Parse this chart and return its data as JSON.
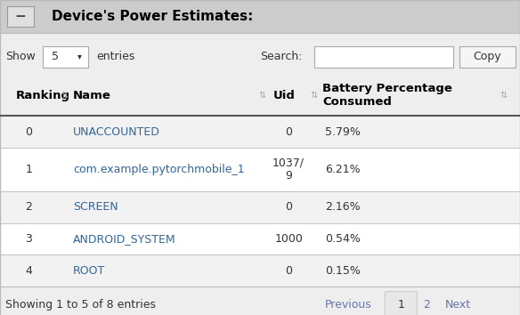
{
  "title": "Device's Power Estimates:",
  "rows": [
    [
      "0",
      "UNACCOUNTED",
      "0",
      "5.79%"
    ],
    [
      "1",
      "com.example.pytorchmobile_1",
      "1037/\n9",
      "6.21%"
    ],
    [
      "2",
      "SCREEN",
      "0",
      "2.16%"
    ],
    [
      "3",
      "ANDROID_SYSTEM",
      "1000",
      "0.54%"
    ],
    [
      "4",
      "ROOT",
      "0",
      "0.15%"
    ]
  ],
  "show_label": "Show",
  "show_value": "5",
  "entries_label": "entries",
  "search_label": "Search:",
  "copy_label": "Copy",
  "footer": "Showing 1 to 5 of 8 entries",
  "pagination": [
    "Previous",
    "1",
    "2",
    "Next"
  ],
  "row_bg_odd": "#f2f2f2",
  "row_bg_even": "#ffffff",
  "name_color": "#336699",
  "text_color": "#333333",
  "header_text_color": "#000000",
  "title_bg": "#cccccc",
  "border_color": "#bbbbbb",
  "pagination_current_bg": "#e8e8e8",
  "pagination_color": "#6677aa",
  "fig_bg": "#eeeeee",
  "font_size": 9,
  "header_font_size": 9.5,
  "title_font_size": 11
}
